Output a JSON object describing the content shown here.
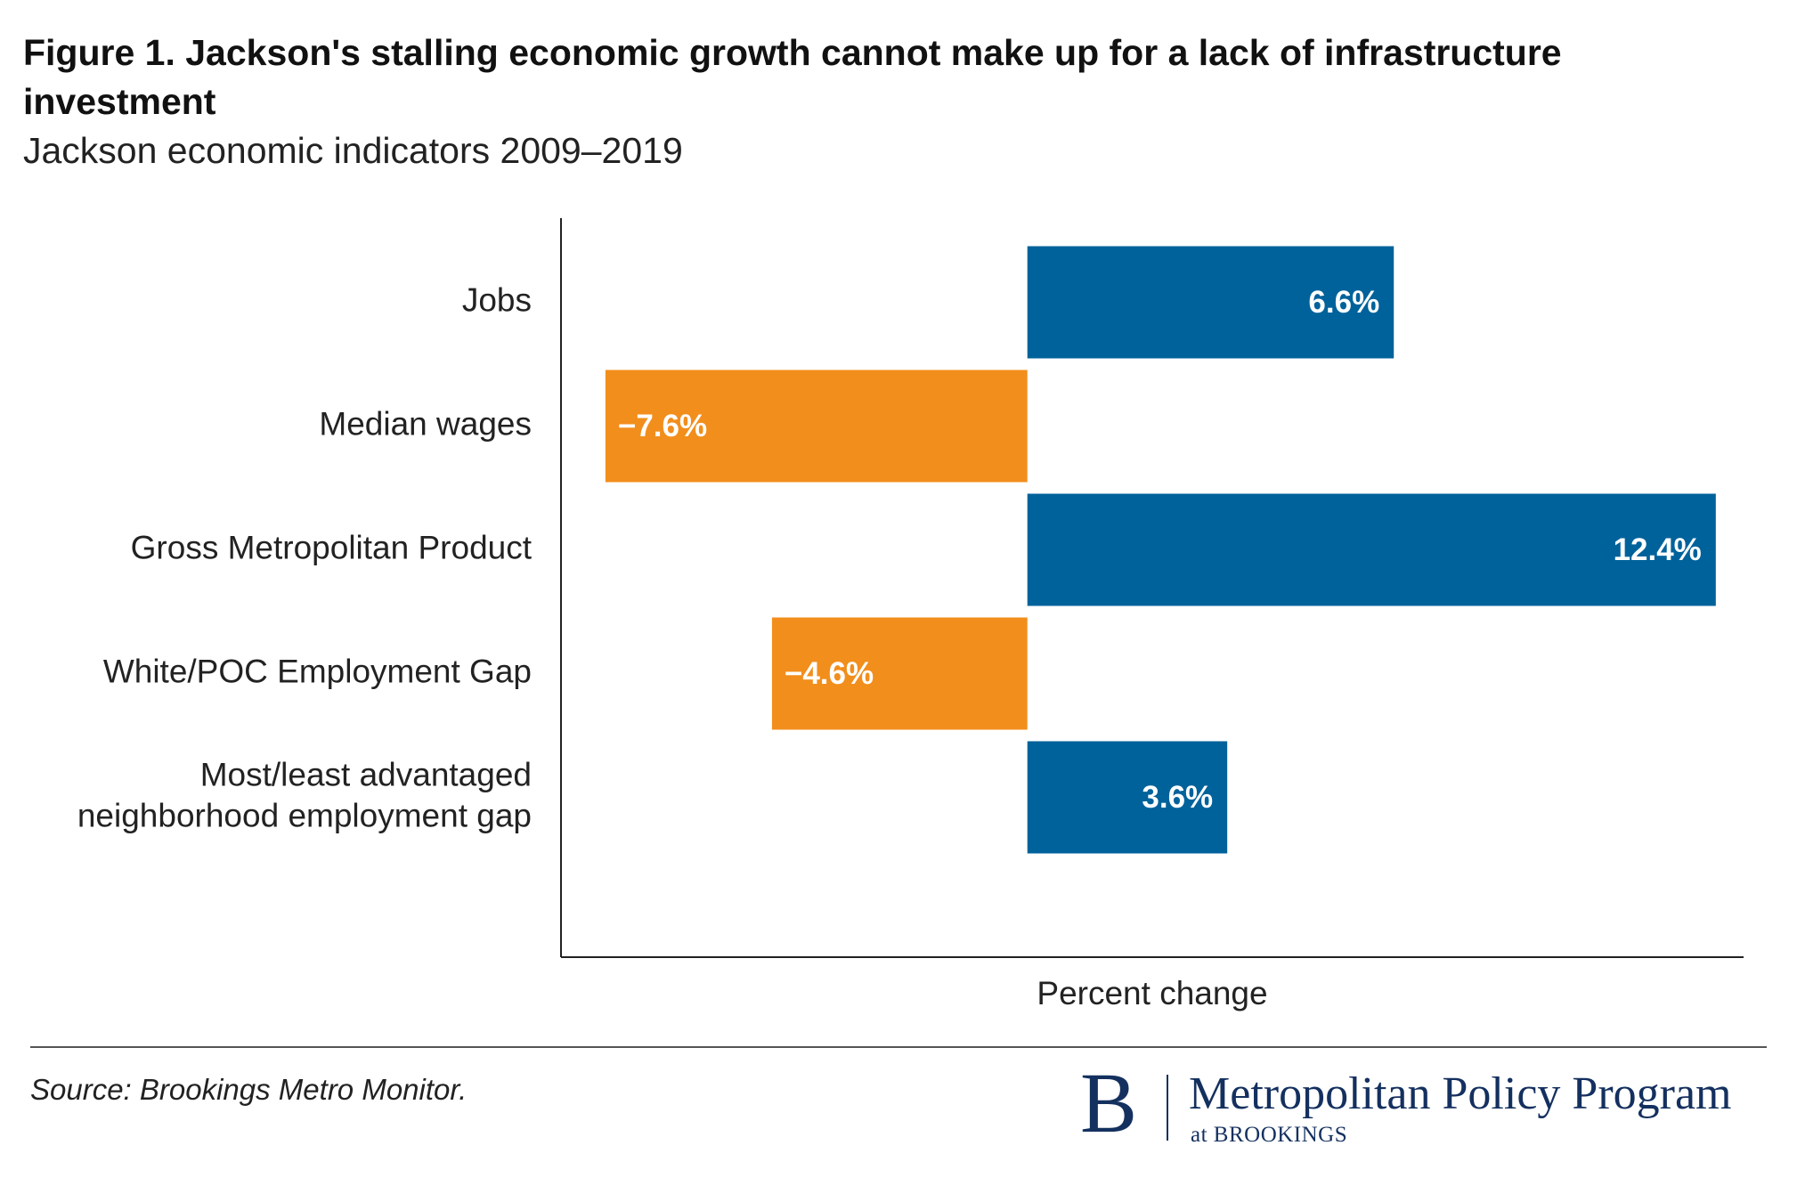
{
  "header": {
    "title": "Figure 1. Jackson's stalling economic growth cannot make up for a lack of infrastructure investment",
    "subtitle": "Jackson economic indicators 2009–2019"
  },
  "chart_data": {
    "type": "bar",
    "orientation": "horizontal",
    "categories": [
      [
        "Jobs"
      ],
      [
        "Median wages"
      ],
      [
        "Gross Metropolitan Product"
      ],
      [
        "White/POC Employment Gap"
      ],
      [
        "Most/least advantaged",
        "neighborhood employment gap"
      ]
    ],
    "values": [
      6.6,
      -7.6,
      12.4,
      -4.6,
      3.6
    ],
    "labels": [
      "6.6%",
      "−7.6%",
      "12.4%",
      "−4.6%",
      "3.6%"
    ],
    "xlabel": "Percent change",
    "xlim": [
      -8.4,
      12.9
    ],
    "grid": false,
    "colors": {
      "positive": "#00629b",
      "negative": "#f28e1c"
    }
  },
  "footer": {
    "source": "Source: Brookings Metro Monitor.",
    "logo_letter": "B",
    "logo_name": "Metropolitan Policy Program",
    "logo_sub": "at BROOKINGS"
  }
}
